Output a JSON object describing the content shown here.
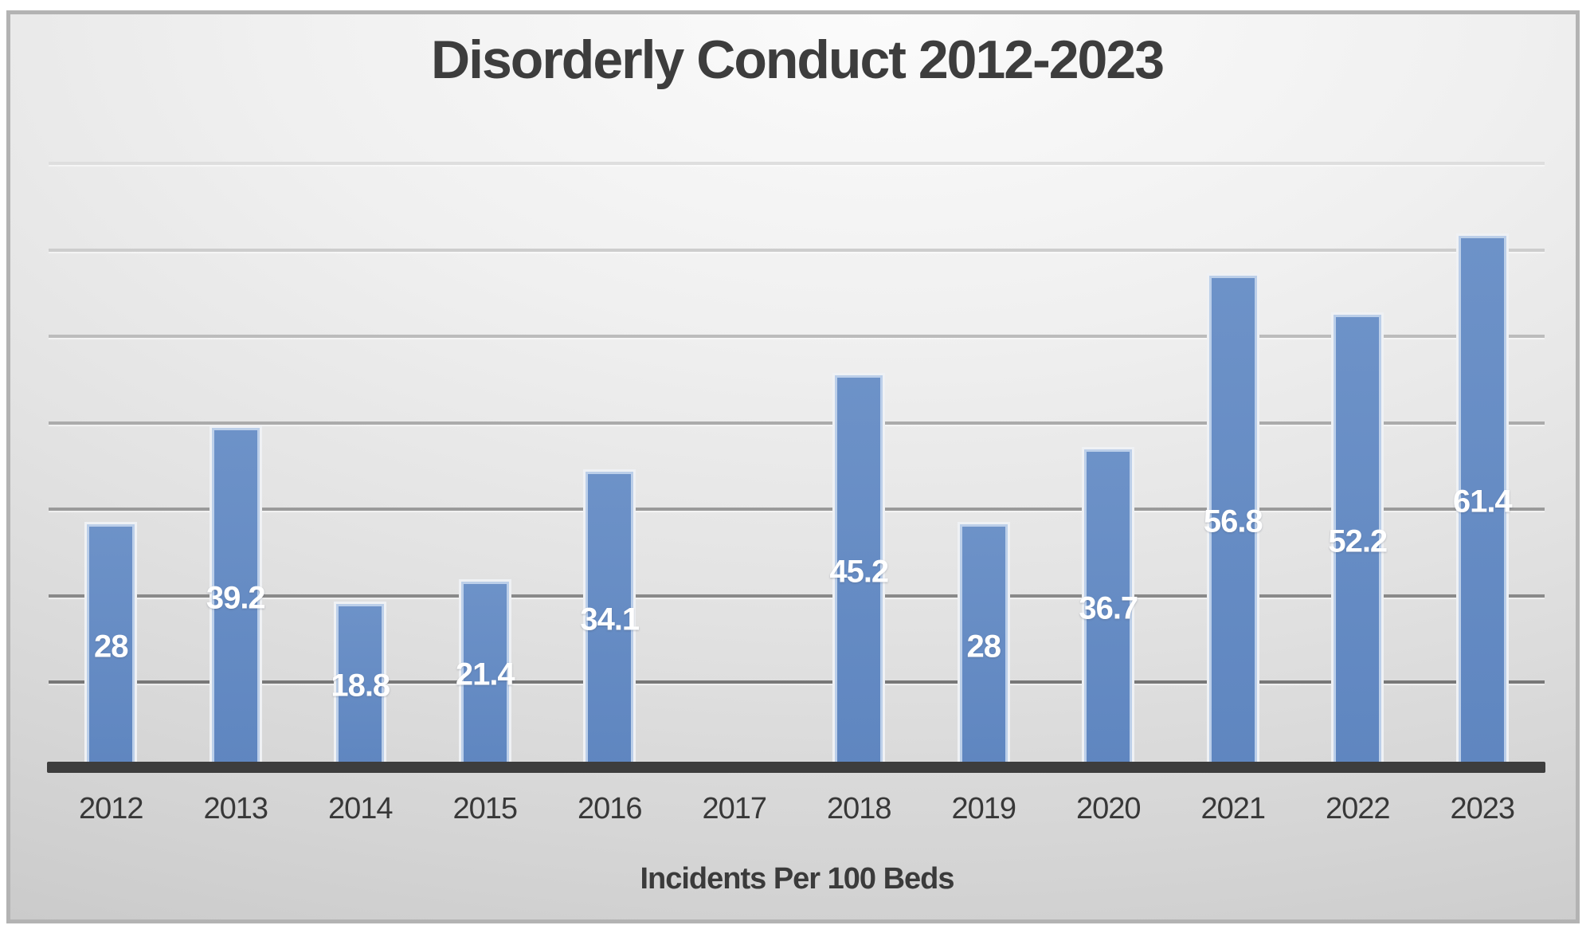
{
  "chart_data": {
    "type": "bar",
    "title": "Disorderly Conduct 2012-2023",
    "xlabel": "Incidents Per 100 Beds",
    "ylabel": "",
    "categories": [
      "2012",
      "2013",
      "2014",
      "2015",
      "2016",
      "2017",
      "2018",
      "2019",
      "2020",
      "2021",
      "2022",
      "2023"
    ],
    "values": [
      28,
      39.2,
      18.8,
      21.4,
      34.1,
      null,
      45.2,
      28,
      36.7,
      56.8,
      52.2,
      61.4
    ],
    "data_labels": [
      "28",
      "39.2",
      "18.8",
      "21.4",
      "34.1",
      "",
      "45.2",
      "28",
      "36.7",
      "56.8",
      "52.2",
      "61.4"
    ],
    "data_label_position": "center",
    "ylim": [
      0,
      75
    ],
    "gridline_values": [
      10,
      20,
      30,
      40,
      50,
      60,
      70
    ],
    "grid": true,
    "legend": false,
    "y_axis_tick_labels_visible": false
  },
  "colors": {
    "bar_fill": "#5f86c0",
    "bar_fill_light": "#6d92c8",
    "bar_border_inner": "#bccfe9",
    "bar_border_outer": "#eff1f4",
    "axis_line": "#3d3d3d",
    "title_text": "#3d3d3d",
    "tick_text": "#383838",
    "value_label_text": "#ffffff",
    "frame_border": "#b3b3b3",
    "gridline_dark": "#787878",
    "gridline_light": "#dedede"
  }
}
